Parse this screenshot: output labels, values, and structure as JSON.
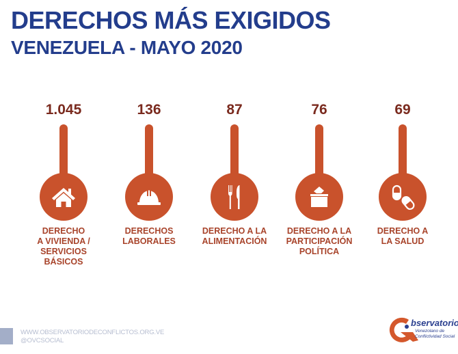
{
  "header": {
    "title": "DERECHOS MÁS EXIGIDOS",
    "subtitle": "VENEZUELA - MAYO 2020"
  },
  "colors": {
    "title": "#233d8c",
    "accent": "#c9522c",
    "value_text": "#7a2a1e",
    "label_text": "#a8432a",
    "footer_text": "#b6bdd0"
  },
  "chart_data": {
    "type": "bar",
    "style": "lollipop-infographic",
    "title": "DERECHOS MÁS EXIGIDOS",
    "subtitle": "VENEZUELA - MAYO 2020",
    "xlabel": "",
    "ylabel": "",
    "grid": false,
    "legend": "none",
    "categories": [
      "DERECHO A VIVIENDA / SERVICIOS BÁSICOS",
      "DERECHOS LABORALES",
      "DERECHO A LA ALIMENTACIÓN",
      "DERECHO A LA PARTICIPACIÓN POLÍTICA",
      "DERECHO A LA SALUD"
    ],
    "values": [
      1045,
      136,
      87,
      76,
      69
    ],
    "value_labels": [
      "1.045",
      "136",
      "87",
      "76",
      "69"
    ],
    "items": [
      {
        "value_label": "1.045",
        "label_lines": [
          "DERECHO",
          "A VIVIENDA /",
          "SERVICIOS",
          "BÁSICOS"
        ],
        "icon": "house-icon"
      },
      {
        "value_label": "136",
        "label_lines": [
          "DERECHOS",
          "LABORALES"
        ],
        "icon": "hard-hat-icon"
      },
      {
        "value_label": "87",
        "label_lines": [
          "DERECHO A LA",
          "ALIMENTACIÓN"
        ],
        "icon": "fork-knife-icon"
      },
      {
        "value_label": "76",
        "label_lines": [
          "DERECHO A LA",
          "PARTICIPACIÓN",
          "POLÍTICA"
        ],
        "icon": "ballot-box-icon"
      },
      {
        "value_label": "69",
        "label_lines": [
          "DERECHO A",
          "LA SALUD"
        ],
        "icon": "pills-icon"
      }
    ]
  },
  "footer": {
    "website": "WWW.OBSERVATORIODECONFLICTOS.ORG.VE",
    "handle": "@OVCSOCIAL",
    "logo_main": "bservatorio",
    "logo_sub1": "Venezolano de",
    "logo_sub2": "Conflictividad Social"
  }
}
